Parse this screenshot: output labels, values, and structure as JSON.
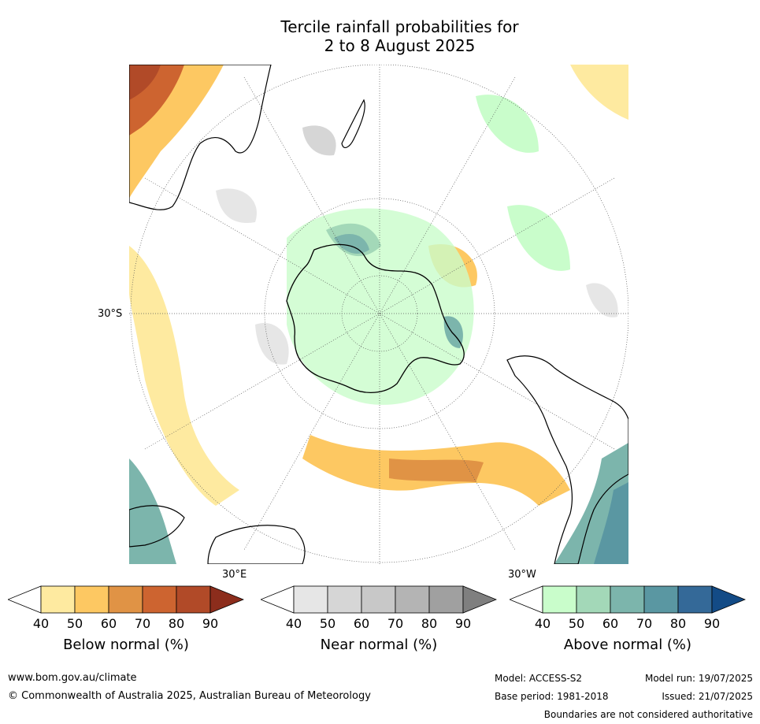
{
  "title": {
    "line1": "Tercile rainfall probabilities for",
    "line2": "2 to 8 August 2025"
  },
  "map_labels": {
    "lat": "30°S",
    "lon_east": "30°E",
    "lon_west": "30°W"
  },
  "colorbars": [
    {
      "title": "Below normal (%)",
      "ticks": [
        "40",
        "50",
        "60",
        "70",
        "80",
        "90"
      ],
      "colors": [
        "#ffffff",
        "#feeaa0",
        "#fdc862",
        "#e09345",
        "#cd6430",
        "#b14a28",
        "#8c2d1c"
      ]
    },
    {
      "title": "Near normal (%)",
      "ticks": [
        "40",
        "50",
        "60",
        "70",
        "80",
        "90"
      ],
      "colors": [
        "#ffffff",
        "#e6e6e6",
        "#d6d6d6",
        "#c8c8c8",
        "#b4b4b4",
        "#a0a0a0",
        "#7f7f7f"
      ]
    },
    {
      "title": "Above normal (%)",
      "ticks": [
        "40",
        "50",
        "60",
        "70",
        "80",
        "90"
      ],
      "colors": [
        "#ffffff",
        "#c9fdcb",
        "#a3d8b8",
        "#7cb5ac",
        "#5a97a2",
        "#346998",
        "#134b86"
      ]
    }
  ],
  "footer": {
    "website": "www.bom.gov.au/climate",
    "copyright": "© Commonwealth of Australia 2025, Australian Bureau of Meteorology",
    "model": "Model: ACCESS-S2",
    "base_period": "Base period: 1981-2018",
    "model_run": "Model run: 19/07/2025",
    "issued": "Issued: 21/07/2025",
    "disclaimer": "Boundaries are not considered authoritative"
  }
}
